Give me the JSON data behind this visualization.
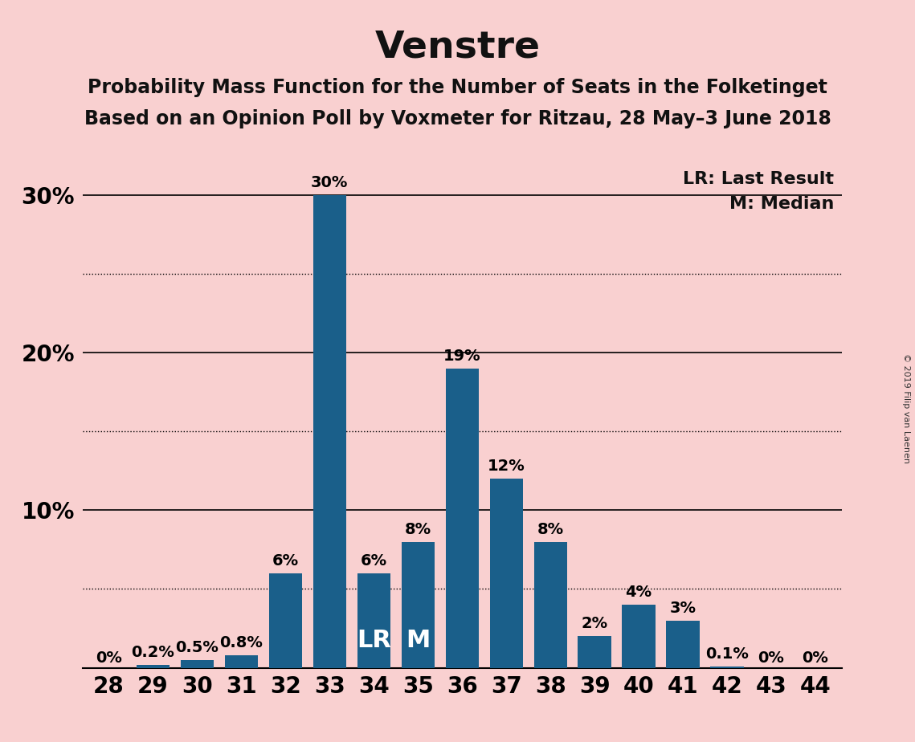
{
  "title": "Venstre",
  "subtitle1": "Probability Mass Function for the Number of Seats in the Folketinget",
  "subtitle2": "Based on an Opinion Poll by Voxmeter for Ritzau, 28 May–3 June 2018",
  "copyright": "© 2019 Filip van Laenen",
  "categories": [
    28,
    29,
    30,
    31,
    32,
    33,
    34,
    35,
    36,
    37,
    38,
    39,
    40,
    41,
    42,
    43,
    44
  ],
  "values": [
    0.0,
    0.2,
    0.5,
    0.8,
    6.0,
    30.0,
    6.0,
    8.0,
    19.0,
    12.0,
    8.0,
    2.0,
    4.0,
    3.0,
    0.1,
    0.0,
    0.0
  ],
  "labels": [
    "0%",
    "0.2%",
    "0.5%",
    "0.8%",
    "6%",
    "30%",
    "6%",
    "8%",
    "19%",
    "12%",
    "8%",
    "2%",
    "4%",
    "3%",
    "0.1%",
    "0%",
    "0%"
  ],
  "bar_color": "#1a5f8a",
  "background_color": "#f9d0d0",
  "lr_seat": 34,
  "median_seat": 35,
  "lr_label": "LR",
  "median_label": "M",
  "legend_lr": "LR: Last Result",
  "legend_m": "M: Median",
  "ylim": [
    0,
    32
  ],
  "dotted_lines": [
    5,
    15,
    25
  ],
  "solid_lines": [
    10,
    20,
    30
  ],
  "title_fontsize": 34,
  "subtitle_fontsize": 17,
  "bar_label_fontsize": 14,
  "legend_fontsize": 16,
  "axis_label_fontsize": 20,
  "lr_m_fontsize": 22
}
